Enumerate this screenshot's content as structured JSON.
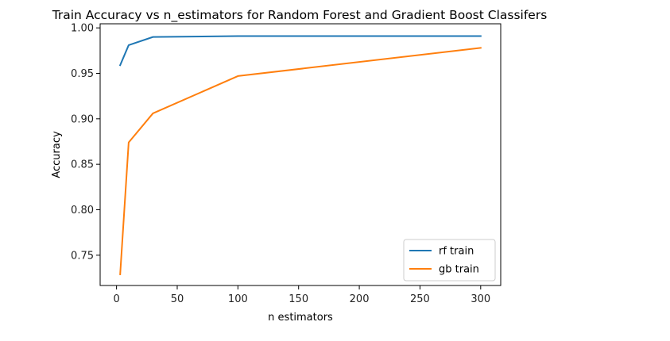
{
  "chart_data": {
    "type": "line",
    "title": "Train Accuracy vs n_estimators for Random Forest and Gradient Boost Classifers",
    "xlabel": "n estimators",
    "ylabel": "Accuracy",
    "xlim": [
      -13.5,
      316.5
    ],
    "ylim": [
      0.7167,
      1.0045
    ],
    "xticks": [
      0,
      50,
      100,
      150,
      200,
      250,
      300
    ],
    "yticks": [
      0.75,
      0.8,
      0.85,
      0.9,
      0.95,
      1.0
    ],
    "ytick_labels": [
      "0.75",
      "0.80",
      "0.85",
      "0.90",
      "0.95",
      "1.00"
    ],
    "grid": false,
    "legend_position": "lower-right",
    "series": [
      {
        "name": "rf train",
        "color": "#1f77b4",
        "x": [
          3,
          10,
          30,
          100,
          300
        ],
        "y": [
          0.959,
          0.981,
          0.99,
          0.991,
          0.991
        ]
      },
      {
        "name": "gb train",
        "color": "#ff7f0e",
        "x": [
          3,
          10,
          30,
          100,
          300
        ],
        "y": [
          0.729,
          0.874,
          0.906,
          0.947,
          0.978
        ]
      }
    ]
  }
}
